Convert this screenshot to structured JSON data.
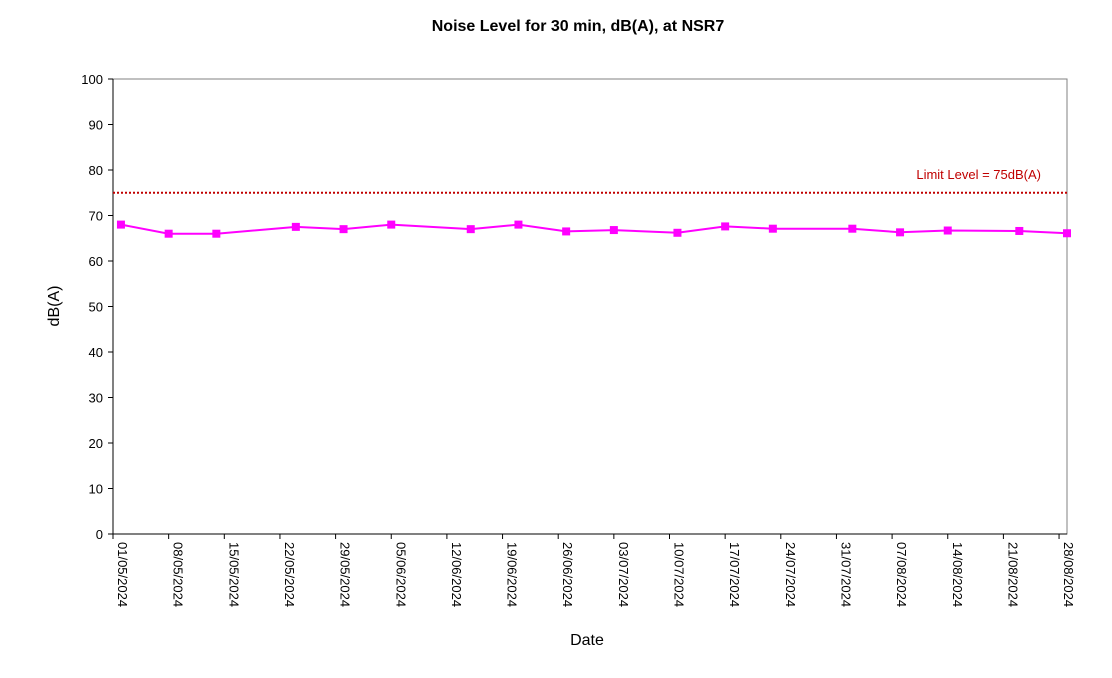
{
  "chart_data": {
    "type": "line",
    "title": "Noise Level for 30 min, dB(A), at NSR7",
    "xlabel": "Date",
    "ylabel": "dB(A)",
    "ylim": [
      0,
      100
    ],
    "yticks": [
      0,
      10,
      20,
      30,
      40,
      50,
      60,
      70,
      80,
      90,
      100
    ],
    "xlim": [
      "2024-05-01",
      "2024-08-29"
    ],
    "xtick_labels": [
      "01/05/2024",
      "08/05/2024",
      "15/05/2024",
      "22/05/2024",
      "29/05/2024",
      "05/06/2024",
      "12/06/2024",
      "19/06/2024",
      "26/06/2024",
      "03/07/2024",
      "10/07/2024",
      "17/07/2024",
      "24/07/2024",
      "31/07/2024",
      "07/08/2024",
      "14/08/2024",
      "21/08/2024",
      "28/08/2024"
    ],
    "xtick_dates": [
      "2024-05-01",
      "2024-05-08",
      "2024-05-15",
      "2024-05-22",
      "2024-05-29",
      "2024-06-05",
      "2024-06-12",
      "2024-06-19",
      "2024-06-26",
      "2024-07-03",
      "2024-07-10",
      "2024-07-17",
      "2024-07-24",
      "2024-07-31",
      "2024-08-07",
      "2024-08-14",
      "2024-08-21",
      "2024-08-28"
    ],
    "grid": false,
    "series": [
      {
        "color": "#FF00FF",
        "marker": "square",
        "x": [
          "2024-05-02",
          "2024-05-08",
          "2024-05-14",
          "2024-05-24",
          "2024-05-30",
          "2024-06-05",
          "2024-06-15",
          "2024-06-21",
          "2024-06-27",
          "2024-07-03",
          "2024-07-11",
          "2024-07-17",
          "2024-07-23",
          "2024-08-02",
          "2024-08-08",
          "2024-08-14",
          "2024-08-23",
          "2024-08-29"
        ],
        "y": [
          68.0,
          66.0,
          66.0,
          67.5,
          67.0,
          68.0,
          67.0,
          68.0,
          66.5,
          66.8,
          66.2,
          67.6,
          67.1,
          67.1,
          66.3,
          66.7,
          66.6,
          66.1
        ]
      }
    ],
    "limit": {
      "value": 75,
      "label": "Limit Level  = 75dB(A)",
      "color": "#C00000",
      "style": "dotted"
    }
  }
}
